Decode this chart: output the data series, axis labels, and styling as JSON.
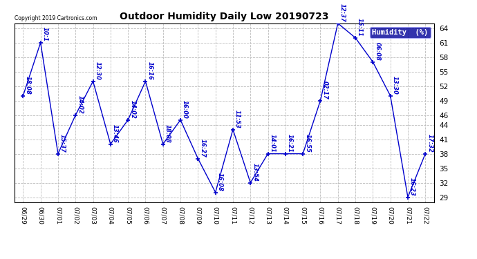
{
  "title": "Outdoor Humidity Daily Low 20190723",
  "copyright": "Copyright 2019 Cartronics.com",
  "legend_label": "Humidity  (%)",
  "line_color": "#0000cc",
  "background_color": "#ffffff",
  "plot_bg_color": "#ffffff",
  "legend_bg_color": "#000099",
  "legend_text_color": "#ffffff",
  "x_labels": [
    "06/29",
    "06/30",
    "07/01",
    "07/02",
    "07/03",
    "07/04",
    "07/05",
    "07/06",
    "07/07",
    "07/08",
    "07/09",
    "07/10",
    "07/11",
    "07/12",
    "07/13",
    "07/14",
    "07/15",
    "07/16",
    "07/17",
    "07/18",
    "07/19",
    "07/20",
    "07/21",
    "07/22"
  ],
  "y_values": [
    50,
    61,
    38,
    46,
    53,
    40,
    45,
    53,
    40,
    45,
    37,
    30,
    43,
    32,
    38,
    38,
    38,
    49,
    65,
    62,
    57,
    50,
    29,
    38
  ],
  "point_labels": [
    "18:08",
    "10:1",
    "15:37",
    "14:02",
    "12:30",
    "13:46",
    "14:02",
    "16:16",
    "18:08",
    "16:00",
    "16:27",
    "16:08",
    "11:53",
    "13:54",
    "14:01",
    "16:21",
    "16:55",
    "02:17",
    "12:37",
    "15:11",
    "06:08",
    "13:30",
    "16:23",
    "17:32"
  ],
  "ylim": [
    28,
    65
  ],
  "ytick_vals": [
    29,
    32,
    35,
    38,
    41,
    44,
    46,
    49,
    52,
    55,
    58,
    61,
    64
  ],
  "grid_color": "#bbbbbb",
  "marker": "+"
}
